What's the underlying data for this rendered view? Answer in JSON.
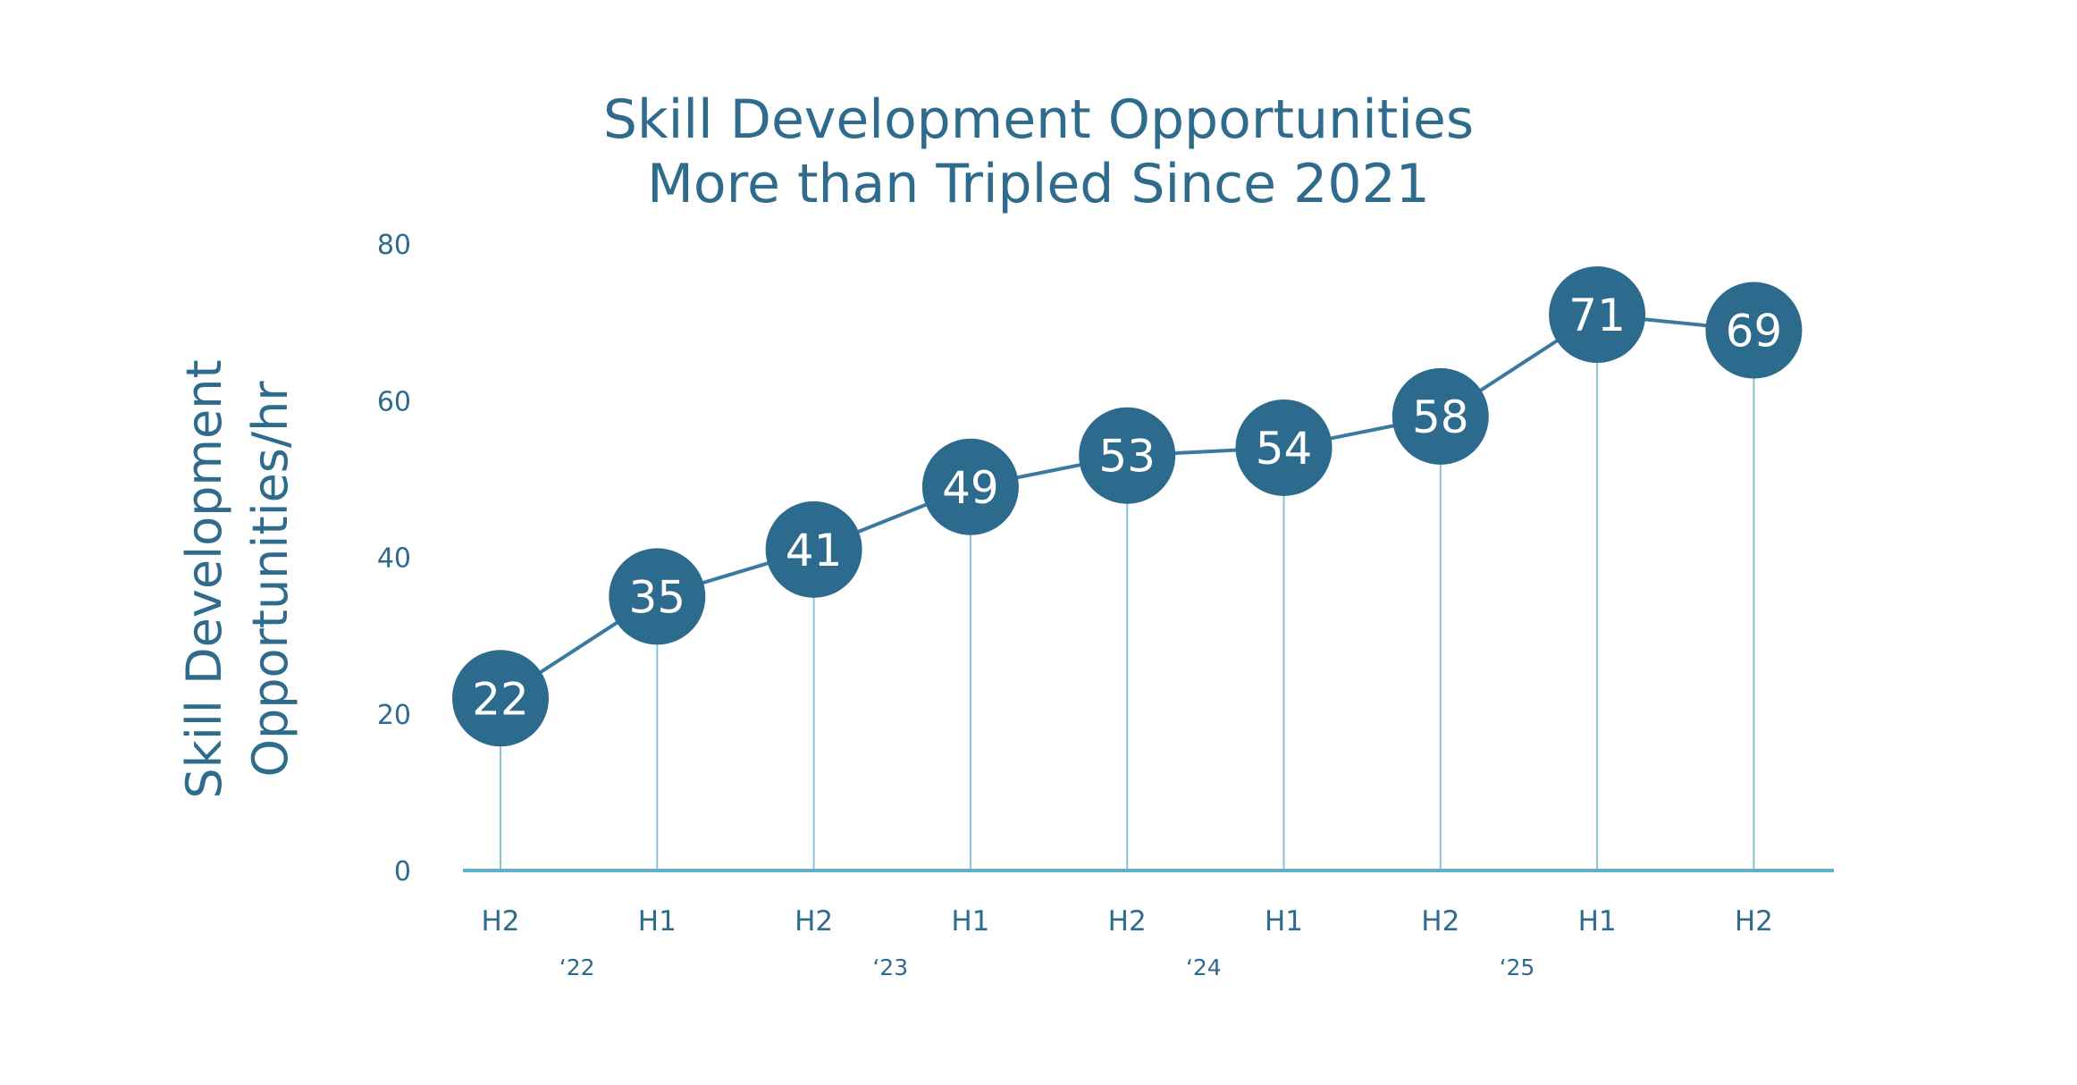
{
  "chart_data": {
    "type": "line",
    "title_lines": [
      "Skill Development Opportunities",
      "More than Tripled Since 2021"
    ],
    "ylabel_lines": [
      "Skill Development",
      "Opportunities/hr"
    ],
    "xlabel": "",
    "categories": [
      "H2",
      "H1",
      "H2",
      "H1",
      "H2",
      "H1",
      "H2",
      "H1",
      "H2"
    ],
    "year_labels": [
      {
        "label": "‘22",
        "between": [
          0,
          1
        ]
      },
      {
        "label": "‘23",
        "between": [
          2,
          3
        ]
      },
      {
        "label": "‘24",
        "between": [
          4,
          5
        ]
      },
      {
        "label": "‘25",
        "between": [
          6,
          7
        ]
      }
    ],
    "series": [
      {
        "values": [
          22,
          35,
          41,
          49,
          53,
          54,
          58,
          71,
          69
        ]
      }
    ],
    "ylim": [
      0,
      80
    ],
    "yticks": [
      0,
      20,
      40,
      60,
      80
    ],
    "grid": false,
    "data_labels": true,
    "colors": {
      "line": "#3a7aa0",
      "marker": "#2c6a8e",
      "stem": "#8bc3d3",
      "axis": "#5fb0c8",
      "text": "#2f6b8c",
      "label_text": "#ffffff"
    }
  }
}
